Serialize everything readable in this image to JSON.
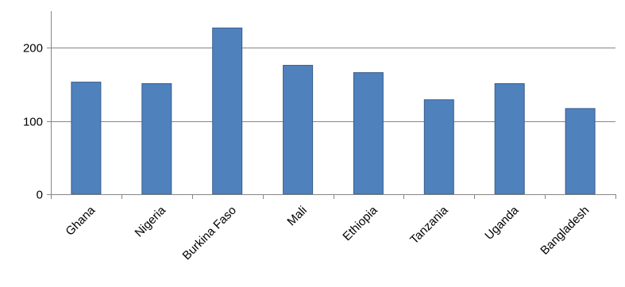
{
  "chart_data": {
    "type": "bar",
    "title": "",
    "xlabel": "",
    "ylabel": "",
    "categories": [
      "Ghana",
      "Nigeria",
      "Burkina Faso",
      "Mali",
      "Ethiopia",
      "Tanzania",
      "Uganda",
      "Bangladesh"
    ],
    "values": [
      153,
      151,
      227,
      176,
      166,
      129,
      151,
      117
    ],
    "ylim": [
      0,
      250
    ],
    "yticks": [
      0,
      100,
      200
    ],
    "ytick_labels": [
      "0",
      "100",
      "200"
    ],
    "grid": true,
    "legend": "none",
    "colors": {
      "bar_fill": "#4F81BD",
      "bar_stroke": "#385D8A",
      "gridline": "#868686",
      "axis": "#868686"
    }
  }
}
